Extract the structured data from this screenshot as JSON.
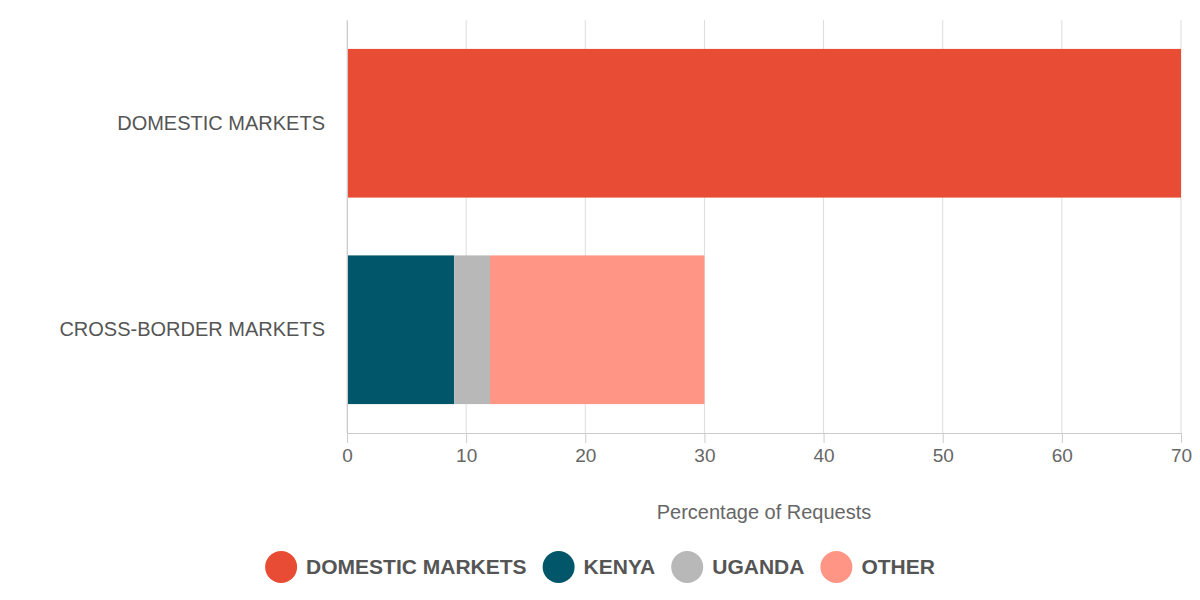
{
  "chart_data": {
    "type": "bar",
    "orientation": "horizontal",
    "stacked": true,
    "categories": [
      "DOMESTIC MARKETS",
      "CROSS-BORDER MARKETS"
    ],
    "series": [
      {
        "name": "DOMESTIC MARKETS",
        "color": "#e84c35",
        "values": [
          70,
          null
        ]
      },
      {
        "name": "KENYA",
        "color": "#025669",
        "values": [
          null,
          9
        ]
      },
      {
        "name": "UGANDA",
        "color": "#b8b8b8",
        "values": [
          null,
          3
        ]
      },
      {
        "name": "OTHER",
        "color": "#ff9585",
        "values": [
          null,
          18
        ]
      }
    ],
    "xlabel": "Percentage of Requests",
    "xlim": [
      0,
      70
    ],
    "xticks": [
      0,
      10,
      20,
      30,
      40,
      50,
      60,
      70
    ],
    "grid": true,
    "legend": "bottom"
  }
}
